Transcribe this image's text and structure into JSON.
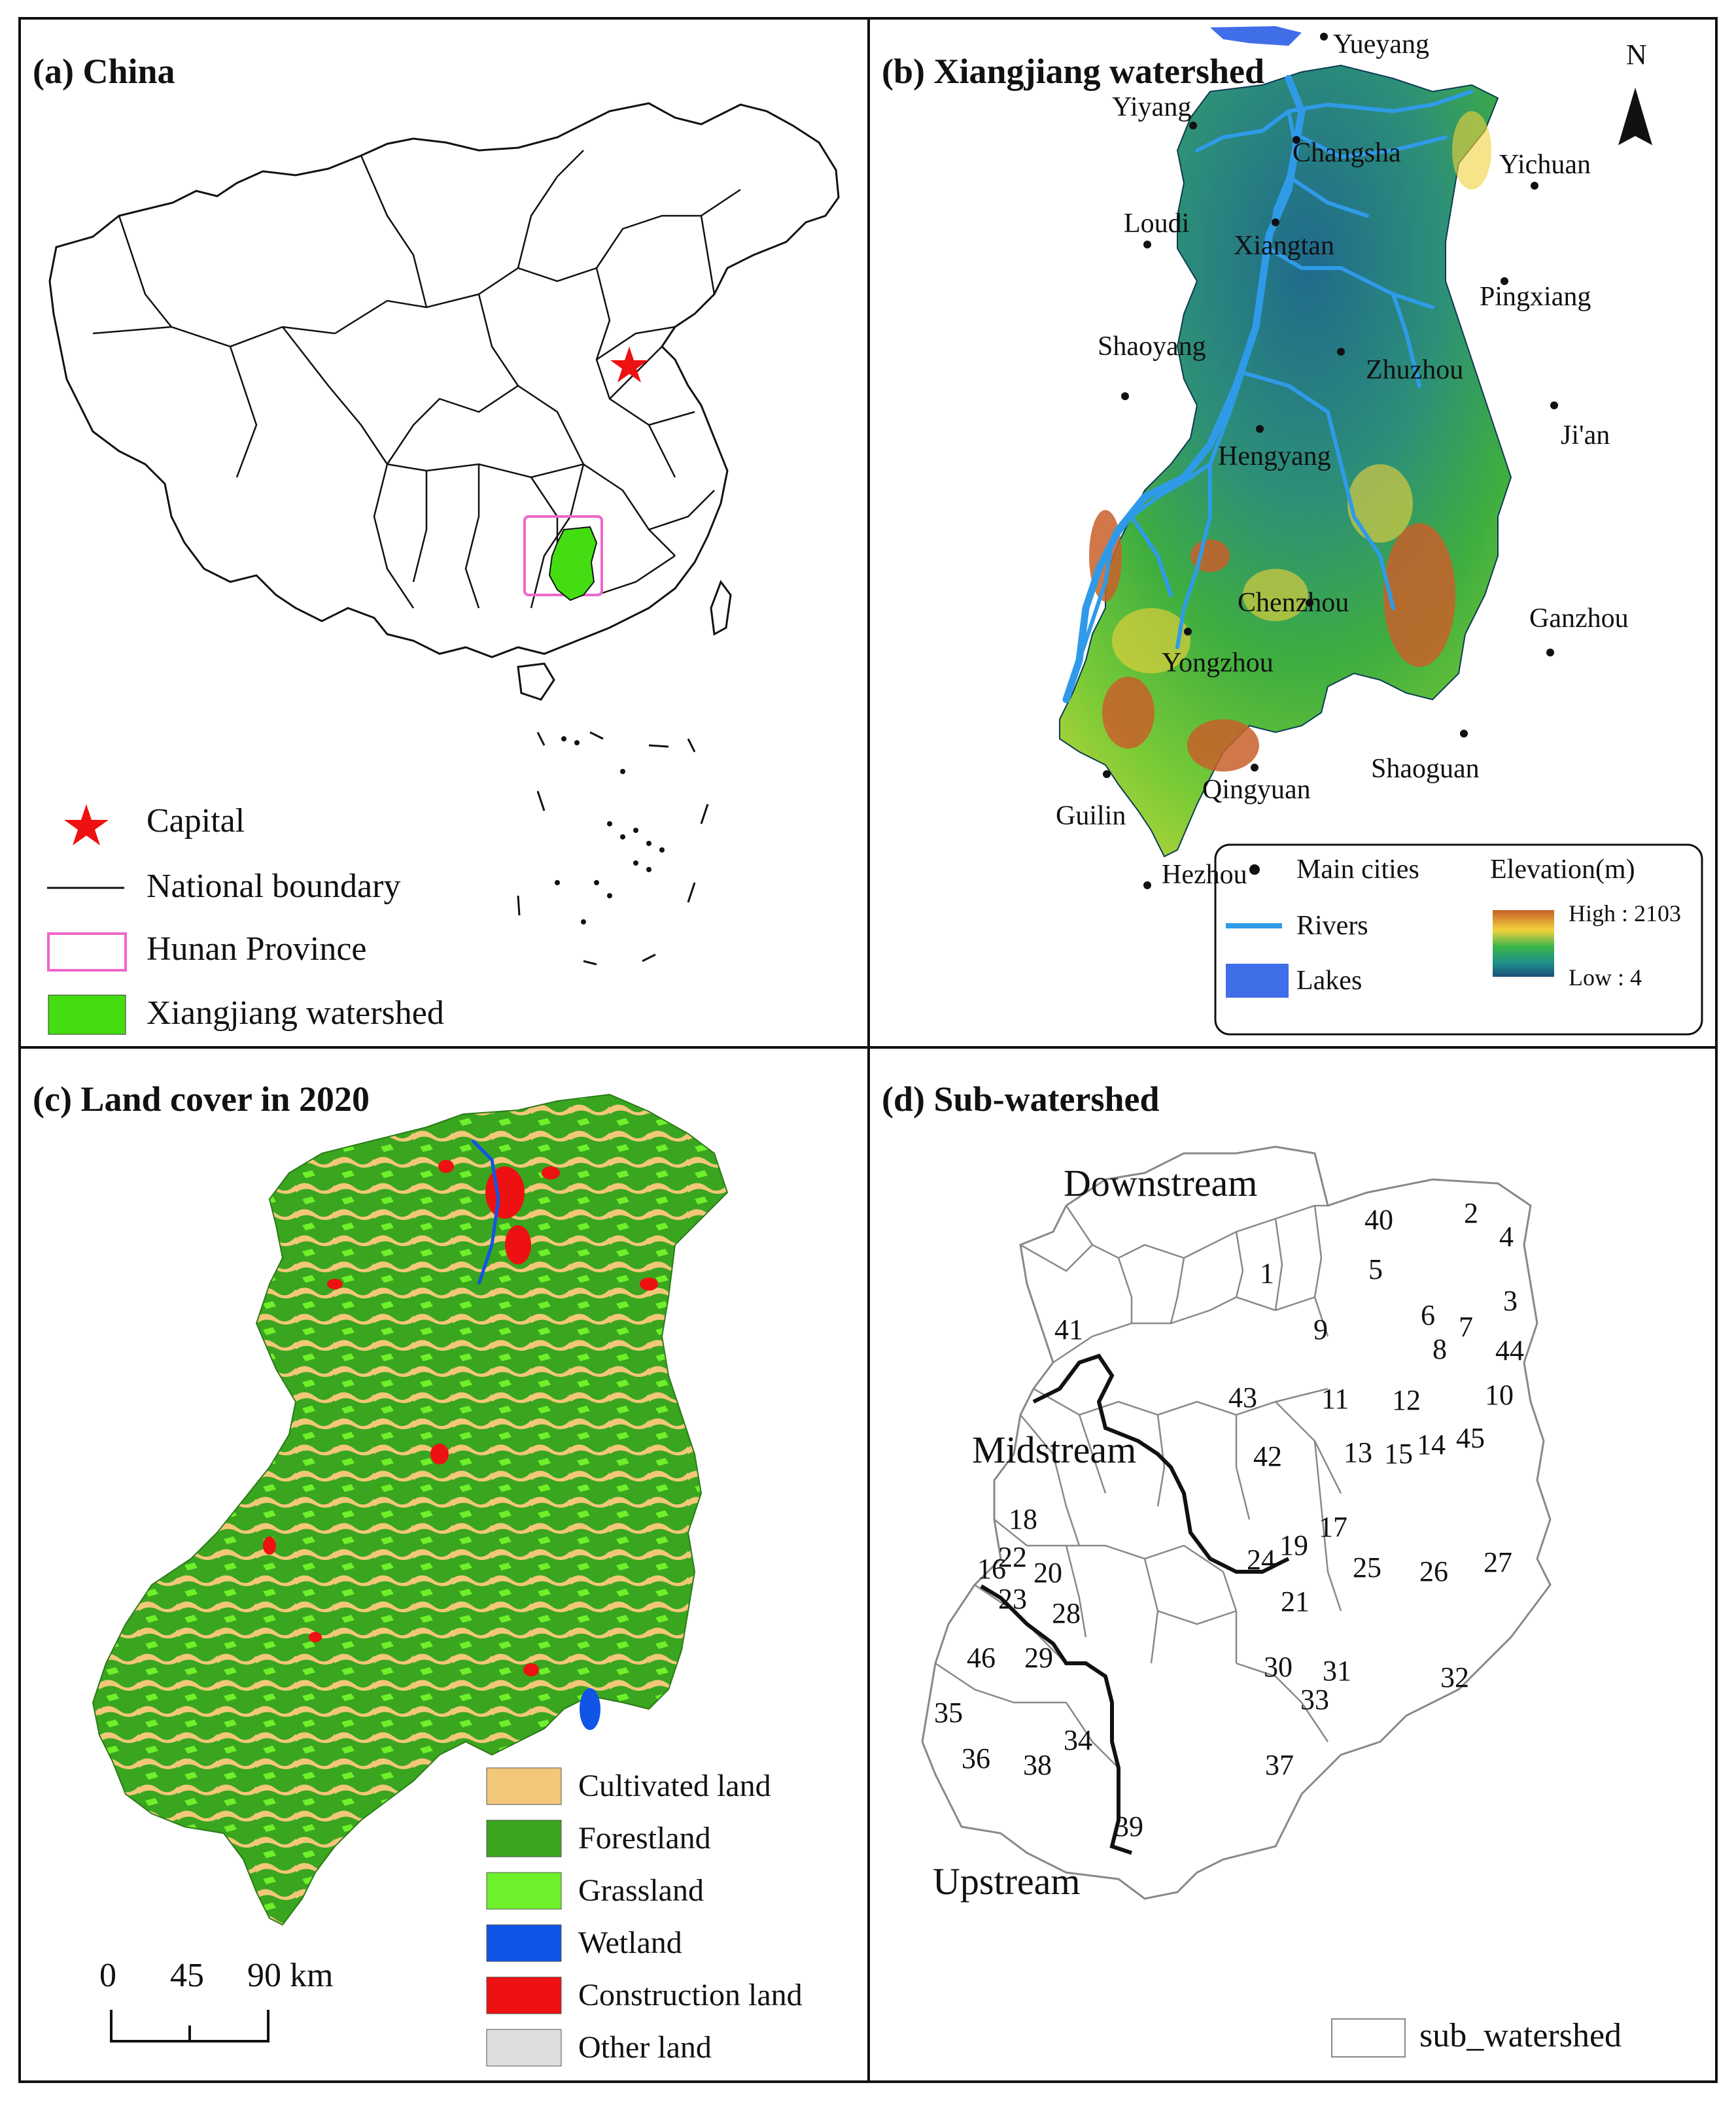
{
  "panel_a": {
    "title": "(a) China",
    "legend": [
      {
        "symbol": "star",
        "label": "Capital",
        "color": "#ee1111"
      },
      {
        "symbol": "line",
        "label": "National boundary",
        "color": "#111111"
      },
      {
        "symbol": "box-outline",
        "label": "Hunan Province",
        "color": "#ee66cc"
      },
      {
        "symbol": "box-fill",
        "label": "Xiangjiang watershed",
        "color": "#44dd11"
      }
    ]
  },
  "panel_b": {
    "title": "(b) Xiangjiang watershed",
    "north_label": "N",
    "cities": [
      "Yueyang",
      "Yiyang",
      "Changsha",
      "Yichuan",
      "Loudi",
      "Xiangtan",
      "Pingxiang",
      "Shaoyang",
      "Zhuzhou",
      "Ji'an",
      "Hengyang",
      "Chenzhou",
      "Ganzhou",
      "Yongzhou",
      "Shaoguan",
      "Qingyuan",
      "Guilin",
      "Hezhou"
    ],
    "legend": {
      "main_cities": "Main cities",
      "rivers": "Rivers",
      "lakes": "Lakes",
      "elevation_title": "Elevation(m)",
      "high": "High : 2103",
      "low": "Low : 4"
    },
    "colors": {
      "river": "#2f9be8",
      "lake": "#3f6ee8",
      "high": "#c8602a",
      "mid": "#39b54a",
      "low": "#1a4f78"
    }
  },
  "panel_c": {
    "title": "(c) Land cover in 2020",
    "scale_ticks": [
      "0",
      "45",
      "90 km"
    ],
    "legend": [
      {
        "label": "Cultivated land",
        "color": "#f2c77a"
      },
      {
        "label": "Forestland",
        "color": "#3aa51f"
      },
      {
        "label": "Grassland",
        "color": "#6ef02a"
      },
      {
        "label": "Wetland",
        "color": "#1155e6"
      },
      {
        "label": "Construction land",
        "color": "#ee1111"
      },
      {
        "label": "Other land",
        "color": "#dddddd"
      }
    ]
  },
  "panel_d": {
    "title": "(d) Sub-watershed",
    "zones": [
      "Downstream",
      "Midstream",
      "Upstream"
    ],
    "legend_label": "sub_watershed",
    "subwatersheds": [
      "1",
      "2",
      "3",
      "4",
      "5",
      "6",
      "7",
      "8",
      "9",
      "10",
      "11",
      "12",
      "13",
      "14",
      "15",
      "16",
      "17",
      "18",
      "19",
      "20",
      "21",
      "22",
      "23",
      "24",
      "25",
      "26",
      "27",
      "28",
      "29",
      "30",
      "31",
      "32",
      "33",
      "34",
      "35",
      "36",
      "37",
      "38",
      "39",
      "40",
      "41",
      "42",
      "43",
      "44",
      "45",
      "46"
    ]
  }
}
